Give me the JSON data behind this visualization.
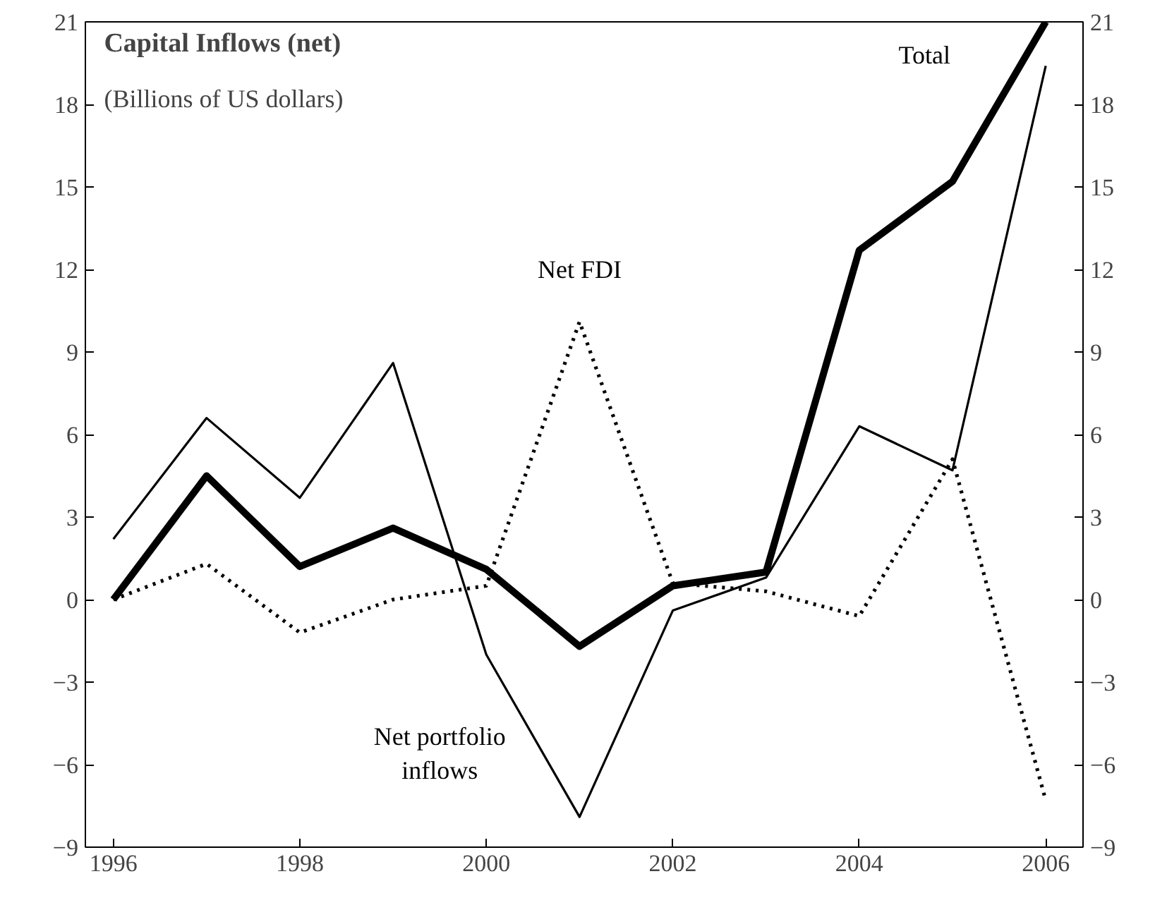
{
  "chart_data": {
    "type": "line",
    "title": "Capital Inflows (net)",
    "subtitle": "(Billions of US dollars)",
    "x": [
      1996,
      1997,
      1998,
      1999,
      2000,
      2001,
      2002,
      2003,
      2004,
      2005,
      2006
    ],
    "xlim": [
      1995.7,
      2006.4
    ],
    "xticks": [
      1996,
      1998,
      2000,
      2002,
      2004,
      2006
    ],
    "ylim": [
      -9,
      21
    ],
    "yticks": [
      -9,
      -6,
      -3,
      0,
      3,
      6,
      9,
      12,
      15,
      18,
      21
    ],
    "y2lim": [
      -9,
      21
    ],
    "y2ticks": [
      -9,
      -6,
      -3,
      0,
      3,
      6,
      9,
      12,
      15,
      18,
      21
    ],
    "grid": false,
    "legend": false,
    "marker": "none",
    "series": [
      {
        "name": "Total",
        "color": "#000000",
        "line_style": "solid",
        "values": [
          0,
          4.5,
          1.2,
          2.6,
          1.1,
          -1.7,
          0.5,
          1.0,
          12.7,
          15.2,
          21
        ]
      },
      {
        "name": "Net portfolio\ninflows",
        "color": "#000000",
        "line_style": "solid",
        "values": [
          2.2,
          6.6,
          3.7,
          8.6,
          -2,
          -7.9,
          -0.4,
          0.8,
          6.3,
          4.7,
          19.4
        ]
      },
      {
        "name": "Net FDI",
        "color": "#000000",
        "line_style": "dotted",
        "values": [
          0,
          1.3,
          -1.2,
          0,
          0.5,
          10.1,
          0.6,
          0.3,
          -0.6,
          5.1,
          -7.3
        ]
      }
    ]
  }
}
